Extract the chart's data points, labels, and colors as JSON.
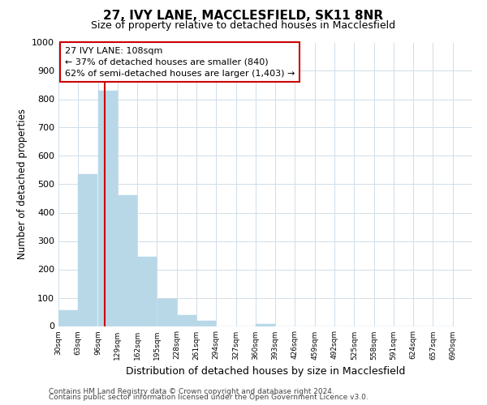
{
  "title": "27, IVY LANE, MACCLESFIELD, SK11 8NR",
  "subtitle": "Size of property relative to detached houses in Macclesfield",
  "xlabel": "Distribution of detached houses by size in Macclesfield",
  "ylabel": "Number of detached properties",
  "bar_edges": [
    30,
    63,
    96,
    129,
    162,
    195,
    228,
    261,
    294,
    327,
    360,
    393,
    426,
    459,
    492,
    525,
    558,
    591,
    624,
    657,
    690
  ],
  "bar_heights": [
    57,
    535,
    830,
    460,
    245,
    97,
    38,
    20,
    0,
    0,
    8,
    0,
    0,
    0,
    0,
    0,
    0,
    0,
    0,
    0
  ],
  "bar_color": "#b8d8e8",
  "bar_edgecolor": "#b8d8e8",
  "property_line_x": 108,
  "property_line_color": "#cc0000",
  "ylim": [
    0,
    1000
  ],
  "yticks": [
    0,
    100,
    200,
    300,
    400,
    500,
    600,
    700,
    800,
    900,
    1000
  ],
  "annotation_line1": "27 IVY LANE: 108sqm",
  "annotation_line2": "← 37% of detached houses are smaller (840)",
  "annotation_line3": "62% of semi-detached houses are larger (1,403) →",
  "annotation_box_color": "#ffffff",
  "annotation_box_edgecolor": "#cc0000",
  "footer_line1": "Contains HM Land Registry data © Crown copyright and database right 2024.",
  "footer_line2": "Contains public sector information licensed under the Open Government Licence v3.0.",
  "grid_color": "#d0dde8",
  "background_color": "#ffffff",
  "tick_labels": [
    "30sqm",
    "63sqm",
    "96sqm",
    "129sqm",
    "162sqm",
    "195sqm",
    "228sqm",
    "261sqm",
    "294sqm",
    "327sqm",
    "360sqm",
    "393sqm",
    "426sqm",
    "459sqm",
    "492sqm",
    "525sqm",
    "558sqm",
    "591sqm",
    "624sqm",
    "657sqm",
    "690sqm"
  ]
}
